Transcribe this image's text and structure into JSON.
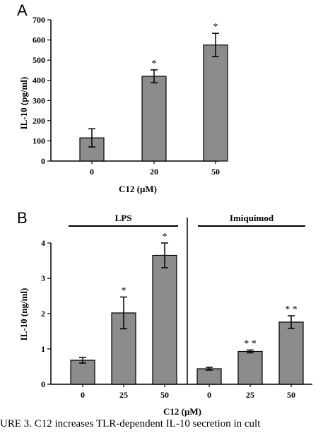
{
  "chart_data": [
    {
      "panel": "A",
      "type": "bar",
      "ylabel": "IL-10 (pg/ml)",
      "xlabel": "C12 (μM)",
      "ylim": [
        0,
        700
      ],
      "yticks": [
        0,
        100,
        200,
        300,
        400,
        500,
        600,
        700
      ],
      "categories": [
        "0",
        "20",
        "50"
      ],
      "values": [
        115,
        420,
        575
      ],
      "errors": [
        45,
        32,
        58
      ],
      "annotations": [
        "",
        "*",
        "*"
      ],
      "bar_color": "#8c8c8c"
    },
    {
      "panel": "B",
      "type": "bar",
      "ylabel": "IL-10 (ng/ml)",
      "xlabel": "C12 (μM)",
      "ylim": [
        0,
        4
      ],
      "yticks": [
        0,
        1,
        2,
        3,
        4
      ],
      "groups": [
        {
          "label": "LPS",
          "categories": [
            "0",
            "25",
            "50"
          ],
          "values": [
            0.68,
            2.02,
            3.65
          ],
          "errors": [
            0.08,
            0.45,
            0.35
          ],
          "annotations": [
            "",
            "*",
            "*"
          ]
        },
        {
          "label": "Imiquimod",
          "categories": [
            "0",
            "25",
            "50"
          ],
          "values": [
            0.44,
            0.93,
            1.76
          ],
          "errors": [
            0.04,
            0.04,
            0.18
          ],
          "annotations": [
            "",
            "**",
            "**"
          ]
        }
      ],
      "bar_color": "#8c8c8c"
    }
  ],
  "caption": "URE 3.   C12 increases TLR-dependent IL-10 secretion in cult"
}
